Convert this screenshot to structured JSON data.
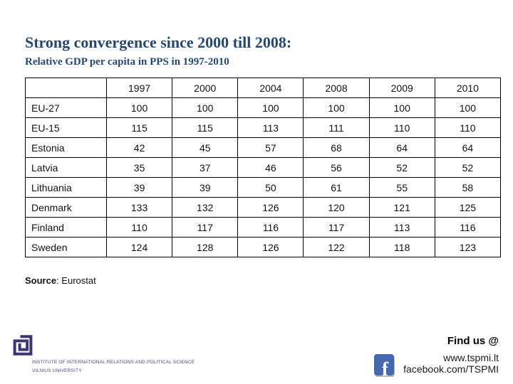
{
  "slide": {
    "title": "Strong convergence since 2000 till 2008:",
    "subtitle": "Relative GDP per capita in PPS in 1997-2010",
    "title_color": "#26476e"
  },
  "chart_data": {
    "type": "table",
    "title": "Relative GDP per capita in PPS in 1997-2010",
    "columns": [
      "1997",
      "2000",
      "2004",
      "2008",
      "2009",
      "2010"
    ],
    "rows": [
      {
        "label": "EU-27",
        "values": [
          100,
          100,
          100,
          100,
          100,
          100
        ]
      },
      {
        "label": "EU-15",
        "values": [
          115,
          115,
          113,
          111,
          110,
          110
        ]
      },
      {
        "label": "Estonia",
        "values": [
          42,
          45,
          57,
          68,
          64,
          64
        ]
      },
      {
        "label": "Latvia",
        "values": [
          35,
          37,
          46,
          56,
          52,
          52
        ]
      },
      {
        "label": "Lithuania",
        "values": [
          39,
          39,
          50,
          61,
          55,
          58
        ]
      },
      {
        "label": "Denmark",
        "values": [
          133,
          132,
          126,
          120,
          121,
          125
        ]
      },
      {
        "label": "Finland",
        "values": [
          110,
          117,
          116,
          117,
          113,
          116
        ]
      },
      {
        "label": "Sweden",
        "values": [
          124,
          128,
          126,
          122,
          118,
          123
        ]
      }
    ]
  },
  "source": {
    "label": "Source",
    "value": ": Eurostat"
  },
  "footer": {
    "institute_line1": "INSTITUTE OF INTERNATIONAL RELATIONS AND POLITICAL SCIENCE",
    "institute_line2": "VILNIUS UNIVERSITY",
    "find_us": "Find us @",
    "website": "www.tspmi.lt",
    "facebook": "facebook.com/TSPMI",
    "facebook_blue": "#4467ad",
    "logo_purple": "#3b3770",
    "facebook_f": "f"
  }
}
